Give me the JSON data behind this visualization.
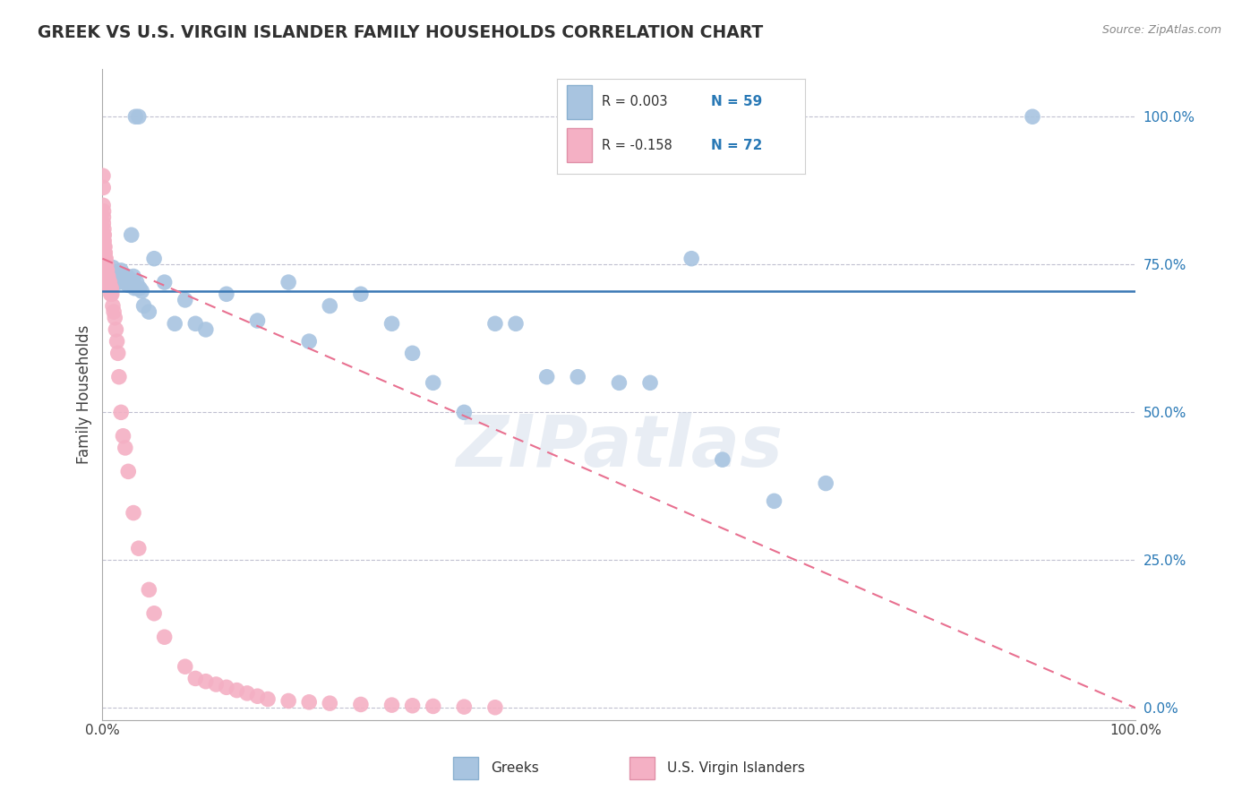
{
  "title": "GREEK VS U.S. VIRGIN ISLANDER FAMILY HOUSEHOLDS CORRELATION CHART",
  "source": "Source: ZipAtlas.com",
  "ylabel": "Family Households",
  "xlim": [
    0.0,
    100.0
  ],
  "ylim": [
    -2.0,
    108.0
  ],
  "ytick_positions": [
    0,
    25,
    50,
    75,
    100
  ],
  "ytick_labels": [
    "0.0%",
    "25.0%",
    "50.0%",
    "75.0%",
    "100.0%"
  ],
  "xtick_positions": [
    0,
    100
  ],
  "xtick_labels": [
    "0.0%",
    "100.0%"
  ],
  "greek_R": 0.003,
  "greek_N": 59,
  "virgin_R": -0.158,
  "virgin_N": 72,
  "greek_color": "#a8c4e0",
  "greek_line_color": "#3a78b5",
  "virgin_color": "#f4b0c4",
  "virgin_line_color": "#e87090",
  "legend_label_greek": "Greeks",
  "legend_label_virgin": "U.S. Virgin Islanders",
  "watermark": "ZIPatlas",
  "background_color": "#ffffff",
  "grid_color": "#c0c0d0",
  "title_color": "#303030",
  "source_color": "#888888",
  "stat_r_color": "#303030",
  "stat_n_color": "#2878b5",
  "greek_x": [
    0.5,
    0.7,
    0.8,
    1.0,
    1.2,
    1.3,
    1.4,
    1.5,
    1.6,
    1.7,
    1.8,
    1.9,
    2.0,
    2.1,
    2.2,
    2.3,
    2.4,
    2.5,
    2.6,
    2.7,
    2.8,
    2.9,
    3.0,
    3.1,
    3.2,
    3.3,
    3.4,
    3.5,
    3.6,
    3.8,
    4.0,
    4.5,
    5.0,
    6.0,
    7.0,
    8.0,
    9.0,
    10.0,
    12.0,
    15.0,
    18.0,
    20.0,
    22.0,
    25.0,
    28.0,
    30.0,
    32.0,
    35.0,
    38.0,
    40.0,
    43.0,
    46.0,
    50.0,
    53.0,
    57.0,
    60.0,
    65.0,
    70.0,
    90.0
  ],
  "greek_y": [
    72.0,
    73.0,
    74.0,
    74.5,
    72.0,
    73.0,
    72.0,
    73.5,
    72.0,
    73.0,
    74.0,
    72.5,
    73.0,
    72.0,
    73.0,
    72.0,
    73.0,
    71.5,
    72.0,
    72.5,
    80.0,
    72.0,
    73.0,
    71.0,
    100.0,
    72.0,
    71.0,
    100.0,
    71.0,
    70.5,
    68.0,
    67.0,
    76.0,
    72.0,
    65.0,
    69.0,
    65.0,
    64.0,
    70.0,
    65.5,
    72.0,
    62.0,
    68.0,
    70.0,
    65.0,
    60.0,
    55.0,
    50.0,
    65.0,
    65.0,
    56.0,
    56.0,
    55.0,
    55.0,
    76.0,
    42.0,
    35.0,
    38.0,
    100.0
  ],
  "virgin_x": [
    0.05,
    0.06,
    0.07,
    0.08,
    0.09,
    0.1,
    0.11,
    0.12,
    0.13,
    0.14,
    0.15,
    0.16,
    0.17,
    0.18,
    0.19,
    0.2,
    0.22,
    0.24,
    0.25,
    0.27,
    0.28,
    0.3,
    0.32,
    0.35,
    0.38,
    0.4,
    0.42,
    0.45,
    0.48,
    0.5,
    0.55,
    0.6,
    0.65,
    0.7,
    0.75,
    0.8,
    0.85,
    0.9,
    1.0,
    1.1,
    1.2,
    1.3,
    1.4,
    1.5,
    1.6,
    1.8,
    2.0,
    2.2,
    2.5,
    3.0,
    3.5,
    4.5,
    5.0,
    6.0,
    8.0,
    9.0,
    10.0,
    11.0,
    12.0,
    13.0,
    14.0,
    15.0,
    16.0,
    18.0,
    20.0,
    22.0,
    25.0,
    28.0,
    30.0,
    32.0,
    35.0,
    38.0
  ],
  "virgin_y": [
    90.0,
    85.0,
    88.0,
    82.0,
    83.0,
    84.0,
    79.0,
    80.0,
    81.0,
    78.0,
    79.0,
    80.0,
    77.0,
    78.0,
    76.0,
    77.0,
    78.0,
    76.0,
    77.0,
    75.0,
    76.0,
    75.0,
    76.0,
    74.0,
    75.0,
    74.0,
    73.0,
    74.0,
    73.0,
    72.0,
    73.0,
    72.0,
    71.0,
    72.0,
    71.0,
    70.0,
    71.0,
    70.0,
    68.0,
    67.0,
    66.0,
    64.0,
    62.0,
    60.0,
    56.0,
    50.0,
    46.0,
    44.0,
    40.0,
    33.0,
    27.0,
    20.0,
    16.0,
    12.0,
    7.0,
    5.0,
    4.5,
    4.0,
    3.5,
    3.0,
    2.5,
    2.0,
    1.5,
    1.2,
    1.0,
    0.8,
    0.6,
    0.5,
    0.4,
    0.3,
    0.2,
    0.1
  ],
  "greek_trend_x": [
    0,
    100
  ],
  "greek_trend_y": [
    70.5,
    70.5
  ],
  "virgin_trend_x": [
    0,
    100
  ],
  "virgin_trend_y": [
    76.0,
    0.0
  ]
}
